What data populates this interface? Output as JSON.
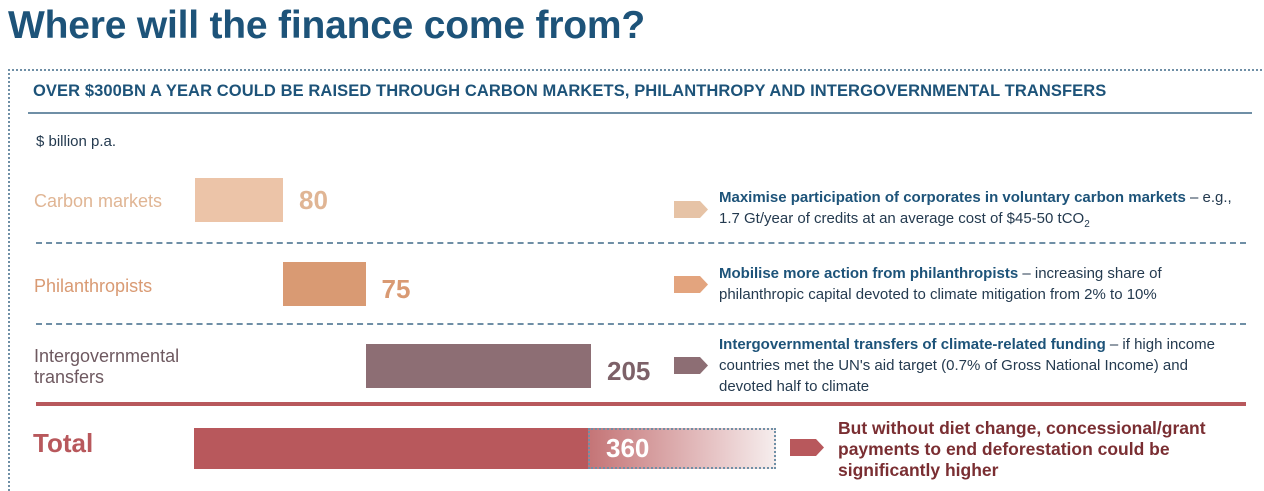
{
  "title": "Where will the finance come from?",
  "subtitle": "OVER $300BN A YEAR COULD BE RAISED THROUGH CARBON MARKETS, PHILANTHROPY AND INTERGOVERNMENTAL TRANSFERS",
  "unit_label": "$ billion p.a.",
  "colors": {
    "title": "#1d5379",
    "carbon_markets": "#ecc4a8",
    "philanthropists": "#d99a73",
    "intergovernmental": "#8d6e74",
    "total": "#b8585c"
  },
  "chart_data": {
    "type": "bar",
    "orientation": "horizontal-waterfall",
    "categories": [
      "Carbon markets",
      "Philanthropists",
      "Intergovernmental transfers",
      "Total"
    ],
    "values": [
      80,
      75,
      205,
      360
    ],
    "value_labels": [
      "80",
      "75",
      "205",
      "360"
    ],
    "ylabel": "$ billion p.a.",
    "grid": false,
    "legend": "none"
  },
  "rows": [
    {
      "label": "Carbon markets",
      "value_label": "80",
      "note_bold": "Maximise participation of corporates in voluntary carbon markets",
      "note_rest": " – e.g., 1.7 Gt/year of credits at an average cost of $45-50 tCO",
      "note_sub": "2"
    },
    {
      "label": "Philanthropists",
      "value_label": "75",
      "note_bold": "Mobilise more action from philanthropists",
      "note_rest": " – increasing share of philanthropic capital devoted to climate mitigation from 2% to 10%"
    },
    {
      "label_line1": "Intergovernmental",
      "label_line2": "transfers",
      "value_label": "205",
      "note_bold": "Intergovernmental transfers of climate-related funding",
      "note_rest": " – if high income countries met the UN's aid target (0.7% of Gross National Income) and devoted half to climate"
    }
  ],
  "total": {
    "label": "Total",
    "value_label": "360",
    "note": "But without diet change, concessional/grant payments to end deforestation could be significantly higher"
  }
}
